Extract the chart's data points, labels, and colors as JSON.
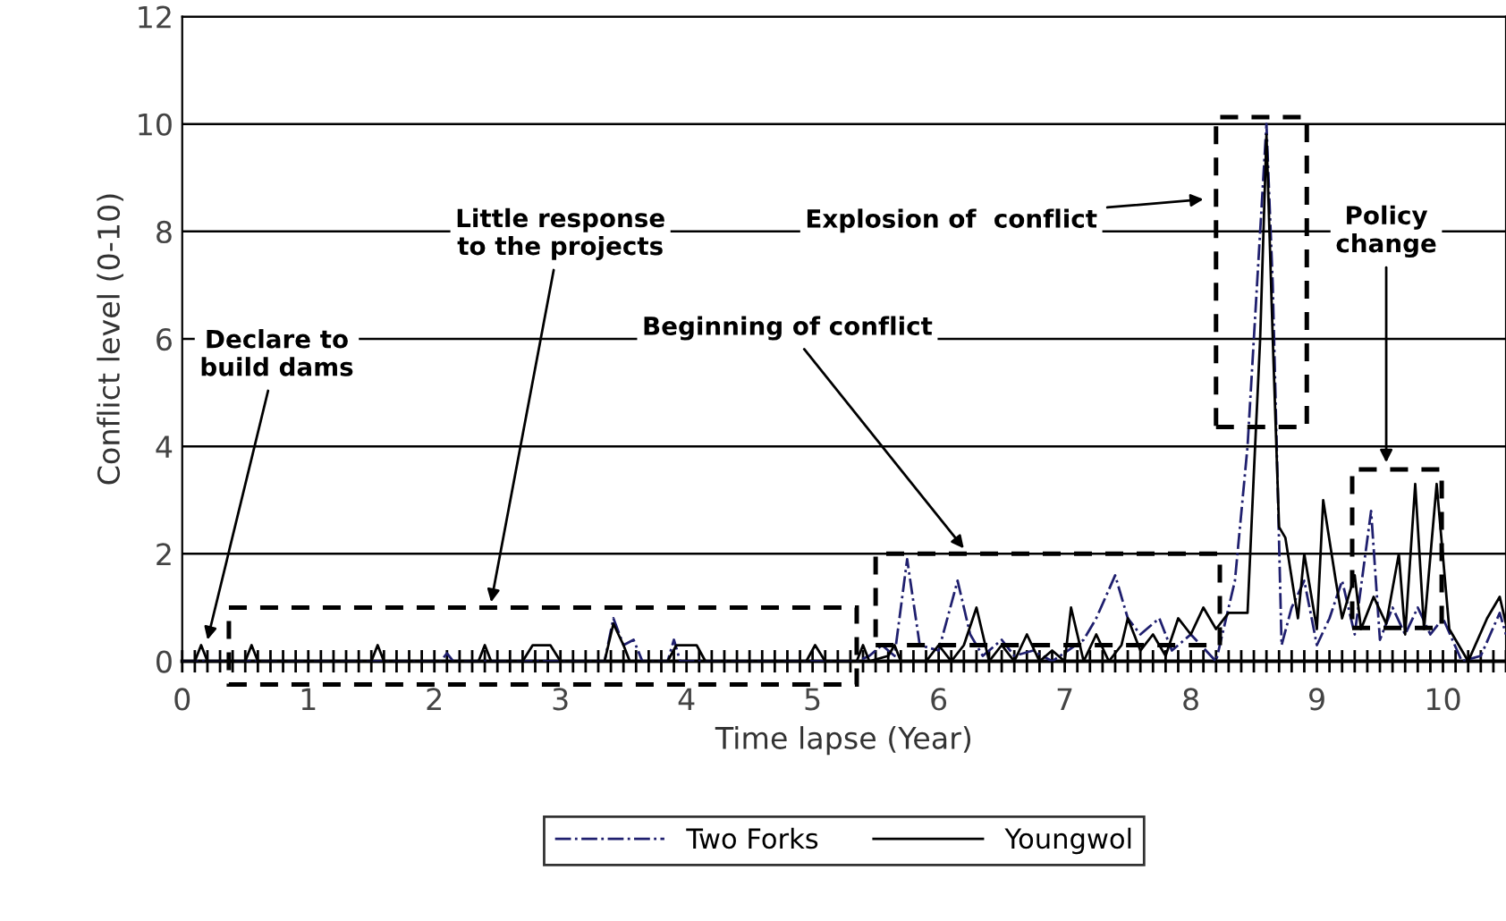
{
  "chart_data": {
    "type": "line",
    "xlabel": "Time lapse (Year)",
    "ylabel": "Conflict level (0-10)",
    "xlim": [
      0,
      10.5
    ],
    "ylim": [
      0,
      12
    ],
    "xticks": [
      0,
      1,
      2,
      3,
      4,
      5,
      6,
      7,
      8,
      9,
      10
    ],
    "yticks": [
      0,
      2,
      4,
      6,
      8,
      10,
      12
    ],
    "grid": "y",
    "legend": "bottom",
    "marker": "none",
    "series": [
      {
        "name": "Two Forks",
        "color": "#1f1f6e",
        "line_style": "dashdot",
        "x": [
          0,
          2.05,
          2.1,
          2.15,
          3.35,
          3.42,
          3.5,
          3.58,
          3.65,
          3.85,
          3.9,
          3.95,
          5.35,
          5.45,
          5.55,
          5.65,
          5.75,
          5.85,
          6.0,
          6.15,
          6.25,
          6.35,
          6.5,
          6.6,
          6.75,
          6.9,
          7.15,
          7.25,
          7.4,
          7.5,
          7.6,
          7.75,
          7.85,
          8.0,
          8.2,
          8.35,
          8.45,
          8.55,
          8.6,
          8.65,
          8.72,
          8.8,
          8.9,
          9.0,
          9.1,
          9.2,
          9.3,
          9.43,
          9.5,
          9.6,
          9.7,
          9.8,
          9.9,
          10.0,
          10.15,
          10.3,
          10.45,
          10.5
        ],
        "values": [
          0,
          0,
          0.15,
          0,
          0,
          0.8,
          0.3,
          0.4,
          0,
          0,
          0.4,
          0,
          0,
          0.1,
          0.3,
          0.1,
          1.9,
          0.3,
          0.2,
          1.5,
          0.5,
          0.1,
          0.4,
          0.1,
          0.2,
          0,
          0.4,
          0.8,
          1.6,
          0.8,
          0.5,
          0.8,
          0.2,
          0.5,
          0,
          1.5,
          4,
          8,
          10,
          7,
          0.3,
          1,
          1.5,
          0.3,
          0.8,
          1.5,
          0.5,
          2.8,
          0.4,
          1,
          0.5,
          1,
          0.5,
          0.8,
          0,
          0.1,
          0.9,
          0.5
        ]
      },
      {
        "name": "Youngwol",
        "color": "#000000",
        "line_style": "solid",
        "x": [
          0,
          0.1,
          0.15,
          0.2,
          0.5,
          0.55,
          0.6,
          1.5,
          1.55,
          1.6,
          2.35,
          2.4,
          2.45,
          2.7,
          2.78,
          2.92,
          3.0,
          3.35,
          3.42,
          3.5,
          3.55,
          3.85,
          3.92,
          4.08,
          4.15,
          4.95,
          5.02,
          5.1,
          5.35,
          5.4,
          5.45,
          5.6,
          5.65,
          5.7,
          5.9,
          6.0,
          6.1,
          6.2,
          6.3,
          6.4,
          6.5,
          6.6,
          6.7,
          6.8,
          6.9,
          7.0,
          7.05,
          7.15,
          7.25,
          7.35,
          7.45,
          7.5,
          7.6,
          7.7,
          7.8,
          7.9,
          8.0,
          8.1,
          8.2,
          8.3,
          8.45,
          8.5,
          8.55,
          8.6,
          8.65,
          8.7,
          8.75,
          8.85,
          8.9,
          9.0,
          9.05,
          9.15,
          9.2,
          9.3,
          9.35,
          9.45,
          9.55,
          9.65,
          9.7,
          9.78,
          9.85,
          9.95,
          10.05,
          10.2,
          10.35,
          10.45,
          10.5
        ],
        "values": [
          0,
          0,
          0.3,
          0,
          0,
          0.3,
          0,
          0,
          0.3,
          0,
          0,
          0.3,
          0,
          0,
          0.3,
          0.3,
          0,
          0,
          0.7,
          0.3,
          0,
          0,
          0.3,
          0.3,
          0,
          0,
          0.3,
          0,
          0,
          0.3,
          0,
          0.1,
          0.3,
          0,
          0,
          0.3,
          0,
          0.3,
          1,
          0,
          0.3,
          0,
          0.5,
          0,
          0.2,
          0,
          1,
          0,
          0.5,
          0,
          0.3,
          0.8,
          0.2,
          0.5,
          0.1,
          0.8,
          0.5,
          1,
          0.6,
          0.9,
          0.9,
          3.5,
          6,
          9.8,
          6,
          2.5,
          2.3,
          0.8,
          2,
          0.6,
          3,
          1.5,
          0.8,
          1.6,
          0.6,
          1.2,
          0.7,
          2,
          0.5,
          3.3,
          0.6,
          3.3,
          0.6,
          0,
          0.8,
          1.2,
          0.7
        ]
      }
    ],
    "annotations": [
      "Declare to\nbuild dams",
      "Little response\nto the projects",
      "Beginning of conflict",
      "Explosion of  conflict",
      "Policy\nchange"
    ]
  }
}
